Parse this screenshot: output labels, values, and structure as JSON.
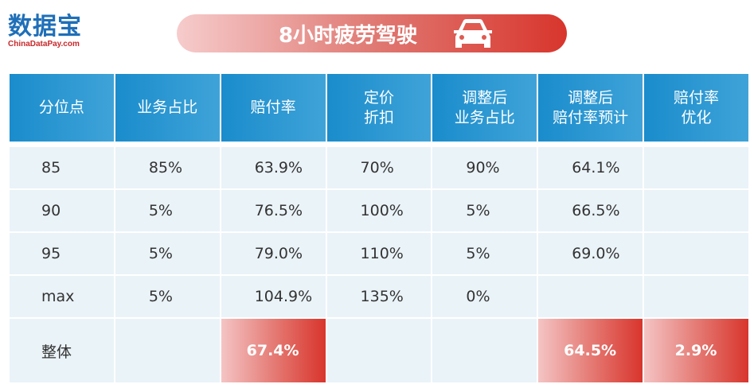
{
  "logo": {
    "name": "数据宝",
    "site": "ChinaDataPay.com"
  },
  "banner": {
    "title": "8小时疲劳驾驶",
    "icon": "car-icon"
  },
  "colors": {
    "header_blue": "#1a8ccc",
    "highlight_red": "#d8352c",
    "row_bg": "#eaf3f8"
  },
  "table": {
    "headers": [
      "分位点",
      "业务占比",
      "赔付率",
      "定价\n折扣",
      "调整后\n业务占比",
      "调整后\n赔付率预计",
      "赔付率\n优化"
    ],
    "rows": [
      [
        "85",
        "85%",
        "63.9%",
        "70%",
        "90%",
        "64.1%",
        ""
      ],
      [
        "90",
        "5%",
        "76.5%",
        "100%",
        "5%",
        "66.5%",
        ""
      ],
      [
        "95",
        "5%",
        "79.0%",
        "110%",
        "5%",
        "69.0%",
        ""
      ],
      [
        "max",
        "5%",
        "104.9%",
        "135%",
        "0%",
        "",
        ""
      ]
    ],
    "total": [
      "整体",
      "",
      "67.4%",
      "",
      "",
      "64.5%",
      "2.9%"
    ]
  }
}
